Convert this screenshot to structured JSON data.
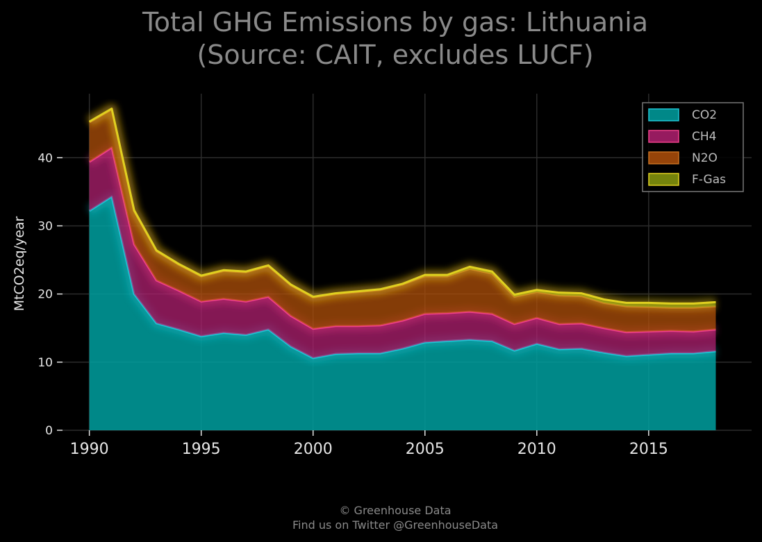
{
  "chart_data": {
    "type": "area",
    "stacked": true,
    "title_lines": [
      "Total GHG Emissions by gas: Lithuania",
      "(Source: CAIT, excludes LUCF)"
    ],
    "xlabel": "",
    "ylabel": "MtCO2eq/year",
    "x": [
      1990,
      1991,
      1992,
      1993,
      1994,
      1995,
      1996,
      1997,
      1998,
      1999,
      2000,
      2001,
      2002,
      2003,
      2004,
      2005,
      2006,
      2007,
      2008,
      2009,
      2010,
      2011,
      2012,
      2013,
      2014,
      2015,
      2016,
      2017,
      2018
    ],
    "xticks": [
      1990,
      1995,
      2000,
      2005,
      2010,
      2015
    ],
    "yticks": [
      0,
      10,
      20,
      30,
      40
    ],
    "xlim": [
      1988.8,
      2019.6
    ],
    "ylim": [
      0,
      49.4
    ],
    "grid": true,
    "legend_position": "top-right",
    "series": [
      {
        "name": "CO2",
        "color": "#00a0a0",
        "edge": "#1fc6d6",
        "values": [
          32.2,
          34.3,
          20.0,
          15.7,
          14.8,
          13.8,
          14.3,
          14.0,
          14.8,
          12.3,
          10.6,
          11.2,
          11.3,
          11.3,
          12.0,
          12.9,
          13.1,
          13.3,
          13.1,
          11.7,
          12.7,
          11.9,
          12.0,
          11.4,
          10.9,
          11.1,
          11.3,
          11.3,
          11.6
        ]
      },
      {
        "name": "CH4",
        "color": "#b02070",
        "edge": "#f0408c",
        "values": [
          7.2,
          7.2,
          7.3,
          6.3,
          5.7,
          5.1,
          5.0,
          4.9,
          4.8,
          4.5,
          4.3,
          4.1,
          4.0,
          4.1,
          4.1,
          4.2,
          4.1,
          4.1,
          4.0,
          3.9,
          3.8,
          3.7,
          3.7,
          3.6,
          3.5,
          3.4,
          3.3,
          3.2,
          3.2
        ]
      },
      {
        "name": "N2O",
        "color": "#b0500a",
        "edge": "#c87020",
        "values": [
          5.8,
          5.6,
          4.9,
          4.3,
          3.8,
          3.7,
          4.1,
          4.3,
          4.5,
          4.5,
          4.6,
          4.7,
          5.0,
          5.2,
          5.3,
          5.5,
          5.4,
          6.3,
          5.9,
          4.0,
          3.8,
          4.2,
          4.0,
          3.7,
          3.8,
          3.6,
          3.4,
          3.5,
          3.4
        ]
      },
      {
        "name": "F-Gas",
        "color": "#8a9a0e",
        "edge": "#e0d020",
        "values": [
          0.1,
          0.1,
          0.1,
          0.1,
          0.1,
          0.1,
          0.1,
          0.1,
          0.1,
          0.1,
          0.1,
          0.1,
          0.1,
          0.1,
          0.1,
          0.2,
          0.2,
          0.3,
          0.3,
          0.3,
          0.3,
          0.4,
          0.4,
          0.5,
          0.5,
          0.6,
          0.6,
          0.6,
          0.6
        ]
      }
    ]
  },
  "footer": {
    "line1": "© Greenhouse Data",
    "line2": "Find us on Twitter @GreenhouseData"
  }
}
